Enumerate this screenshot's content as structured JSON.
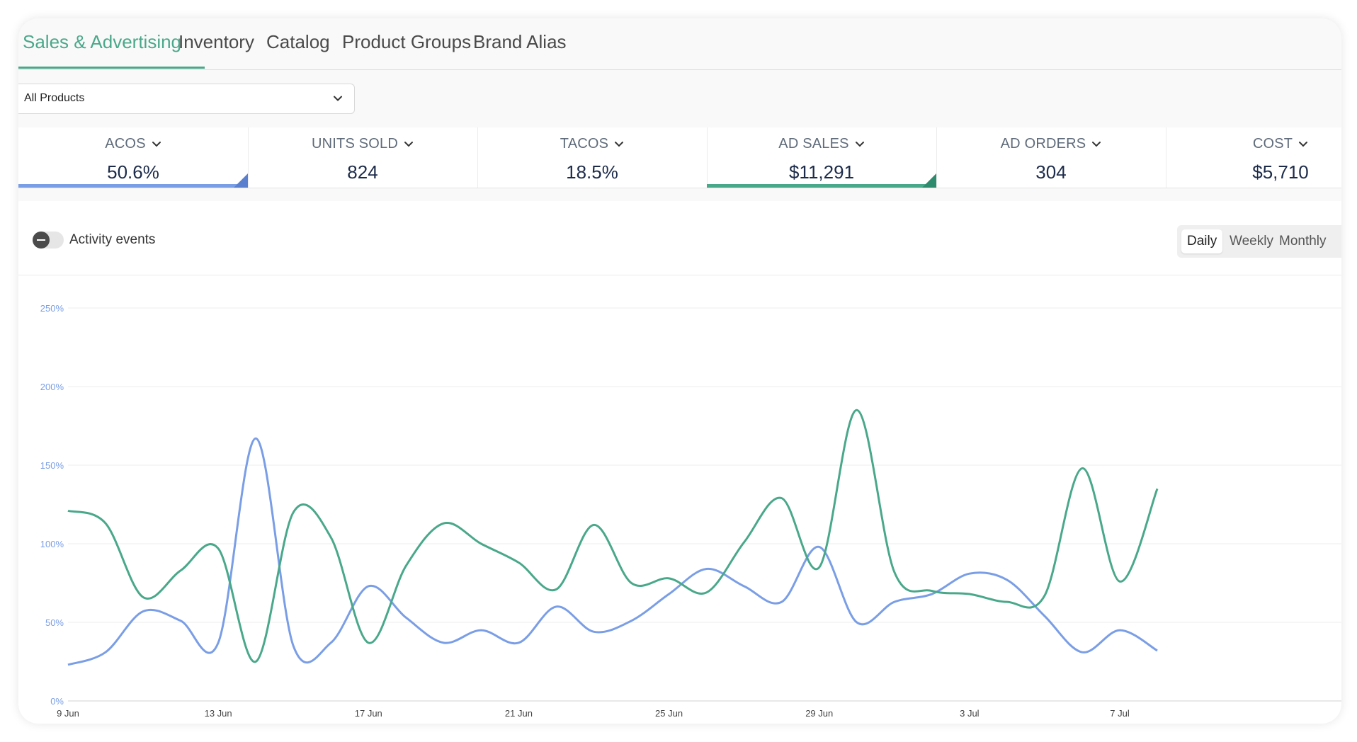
{
  "tabs": [
    {
      "label": "Sales & Advertising",
      "active": true
    },
    {
      "label": "Inventory"
    },
    {
      "label": "Catalog"
    },
    {
      "label": "Product Groups"
    },
    {
      "label": "Brand Alias"
    }
  ],
  "filter": {
    "selected": "All Products",
    "icon": "chevron-down-icon"
  },
  "metrics": [
    {
      "title": "ACOS",
      "value": "50.6%",
      "selected": true,
      "color": "#7a9ee6"
    },
    {
      "title": "UNITS SOLD",
      "value": "824"
    },
    {
      "title": "TACOS",
      "value": "18.5%"
    },
    {
      "title": "AD SALES",
      "value": "$11,291",
      "selected": true,
      "color": "#4aa88a"
    },
    {
      "title": "AD ORDERS",
      "value": "304"
    },
    {
      "title": "COST",
      "value": "$5,710"
    }
  ],
  "activity_toggle": {
    "label": "Activity events",
    "on": false
  },
  "period": {
    "options": [
      "Daily",
      "Weekly",
      "Monthly"
    ],
    "selected": "Daily"
  },
  "colors": {
    "accent": "#4aa88a",
    "acos_line": "#7a9ee6",
    "ad_sales_line": "#4aa88a"
  },
  "chart_data": {
    "type": "line",
    "title": "",
    "x": [
      "9 Jun",
      "10 Jun",
      "11 Jun",
      "12 Jun",
      "13 Jun",
      "14 Jun",
      "15 Jun",
      "16 Jun",
      "17 Jun",
      "18 Jun",
      "19 Jun",
      "20 Jun",
      "21 Jun",
      "22 Jun",
      "23 Jun",
      "24 Jun",
      "25 Jun",
      "26 Jun",
      "27 Jun",
      "28 Jun",
      "29 Jun",
      "30 Jun",
      "1 Jul",
      "2 Jul",
      "3 Jul",
      "4 Jul",
      "5 Jul",
      "6 Jul",
      "7 Jul",
      "8 Jul"
    ],
    "x_tick_labels": [
      "9 Jun",
      "13 Jun",
      "17 Jun",
      "21 Jun",
      "25 Jun",
      "29 Jun",
      "3 Jul",
      "7 Jul"
    ],
    "y_tick_labels": [
      "0%",
      "50%",
      "100%",
      "150%",
      "200%",
      "250%"
    ],
    "ylim": [
      0,
      250
    ],
    "grid": true,
    "series": [
      {
        "name": "ACOS",
        "color": "#7a9ee6",
        "values": [
          23,
          31,
          57,
          51,
          37,
          167,
          35,
          37,
          73,
          53,
          37,
          45,
          37,
          60,
          44,
          51,
          68,
          84,
          73,
          63,
          98,
          50,
          63,
          68,
          81,
          77,
          54,
          31,
          45,
          32
        ]
      },
      {
        "name": "AD SALES",
        "color": "#4aa88a",
        "values": [
          121,
          113,
          66,
          83,
          97,
          25,
          120,
          104,
          37,
          86,
          113,
          100,
          88,
          71,
          112,
          75,
          78,
          69,
          101,
          129,
          85,
          185,
          82,
          70,
          68,
          63,
          67,
          148,
          76,
          135
        ]
      }
    ]
  }
}
